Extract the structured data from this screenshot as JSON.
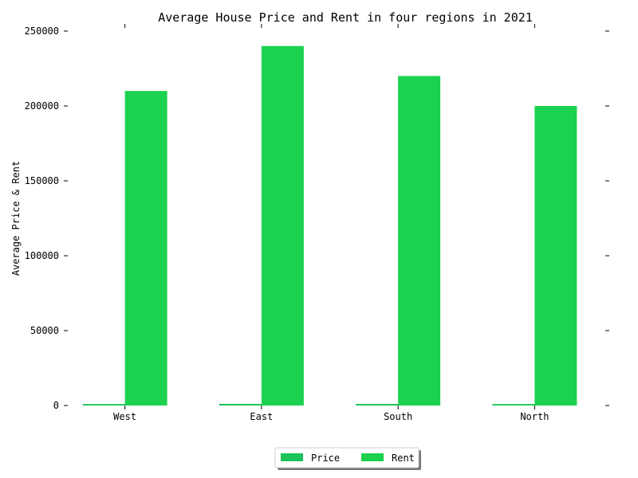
{
  "chart_data": {
    "type": "bar",
    "title": "Average House Price and Rent in four regions in 2021",
    "xlabel": "",
    "ylabel": "Average Price & Rent",
    "categories": [
      "West",
      "East",
      "South",
      "North"
    ],
    "series": [
      {
        "name": "Price",
        "values": [
          1000,
          1100,
          1050,
          1000
        ],
        "color": "#1bc45a"
      },
      {
        "name": "Rent",
        "values": [
          210000,
          240000,
          220000,
          200000
        ],
        "color": "#1bd14f"
      }
    ],
    "ylim": [
      0,
      250000
    ],
    "yticks": [
      0,
      50000,
      100000,
      150000,
      200000,
      250000
    ],
    "grid": false,
    "legend_position": "bottom-center"
  }
}
